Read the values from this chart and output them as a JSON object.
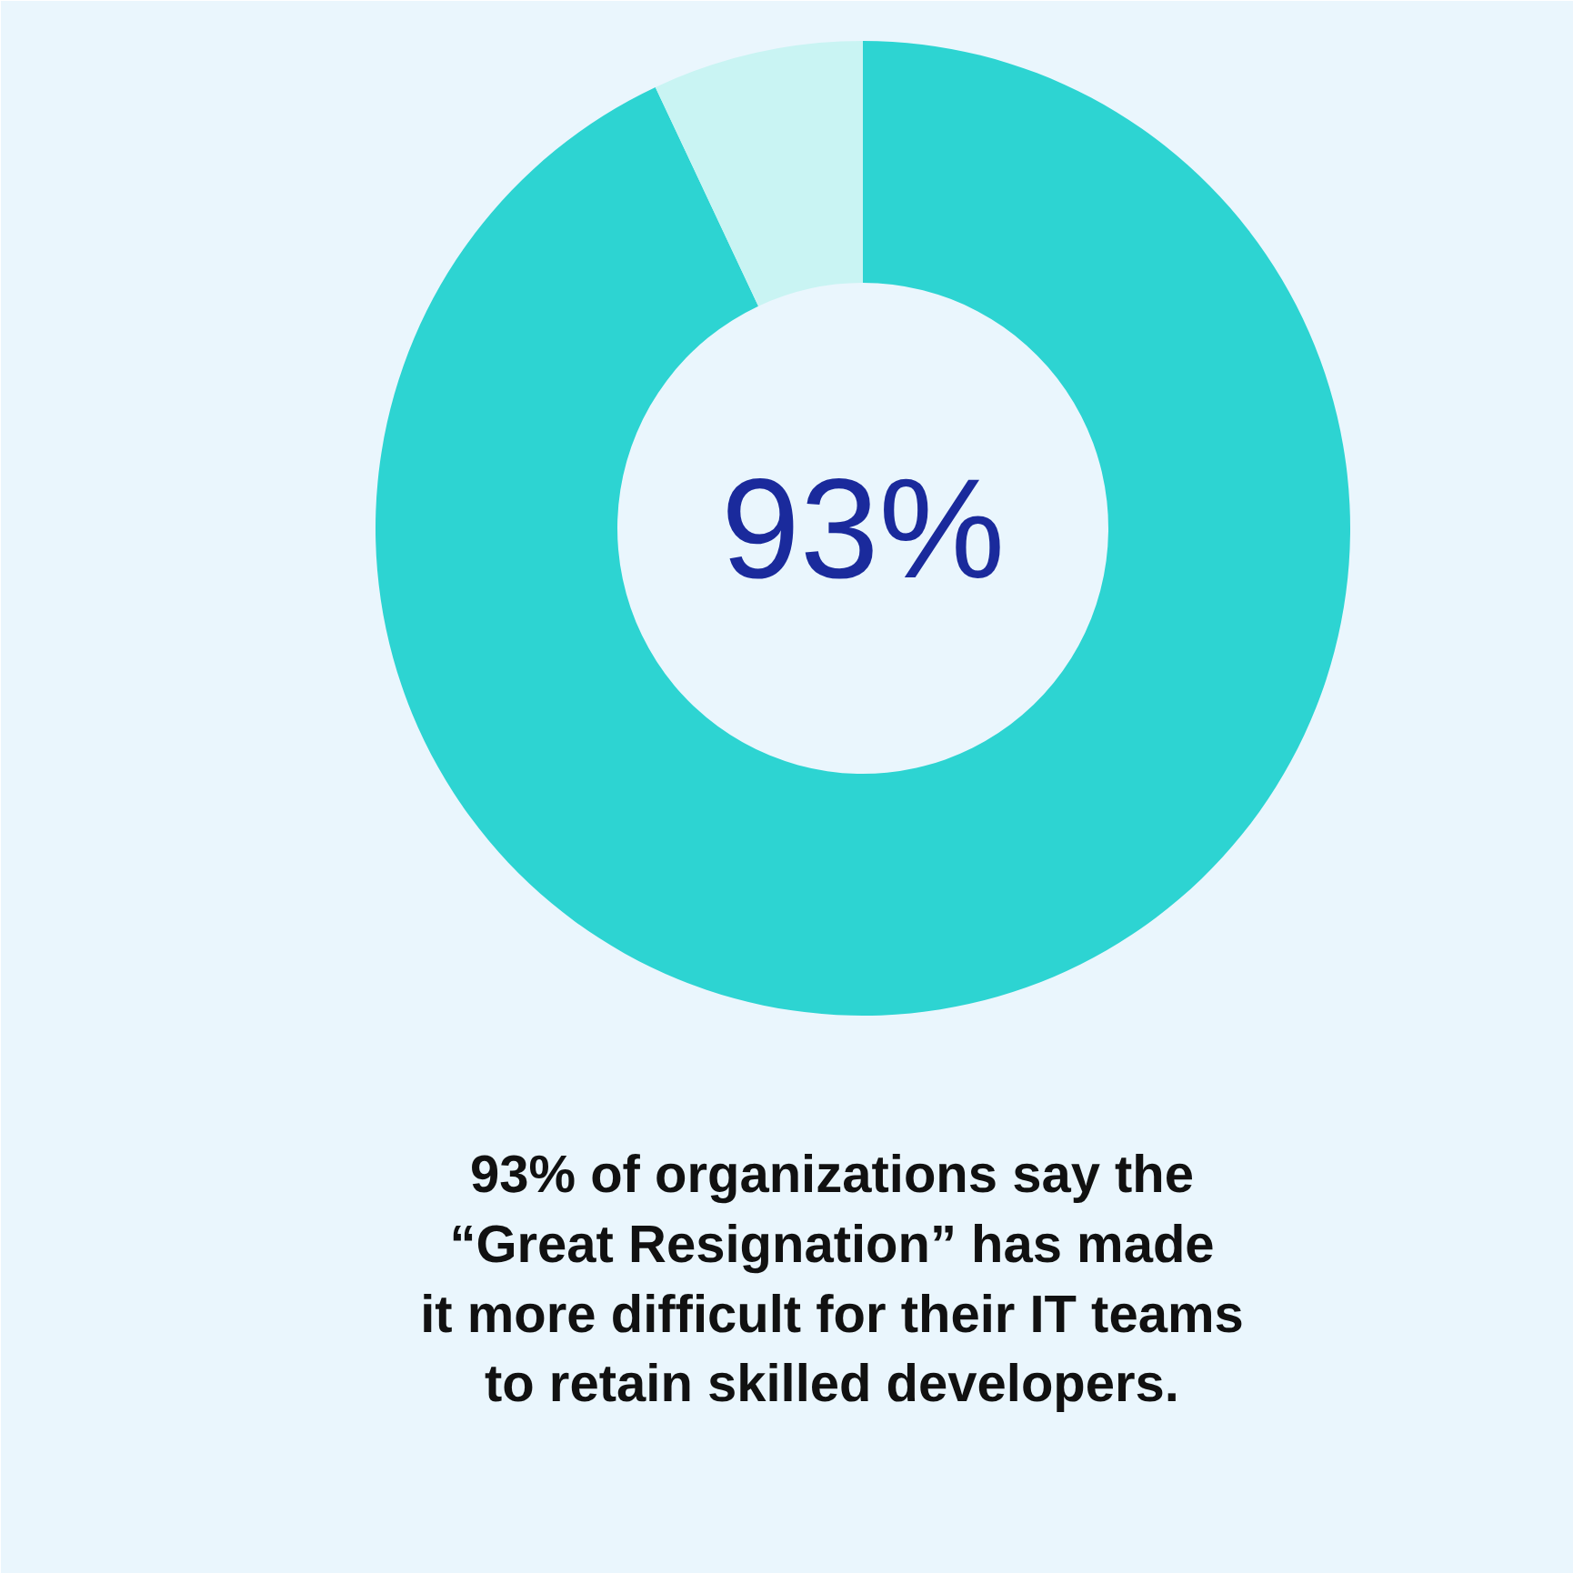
{
  "chart_data": {
    "type": "donut",
    "categories": [
      null,
      null
    ],
    "values": [
      93,
      7
    ],
    "colors": [
      "#2dd4d2",
      "#c9f4f3"
    ],
    "annotations": [
      "93%",
      "93% of organizations say the\n“Great Resignation” has made\nit more difficult for their IT teams\nto retain skilled developers."
    ]
  }
}
